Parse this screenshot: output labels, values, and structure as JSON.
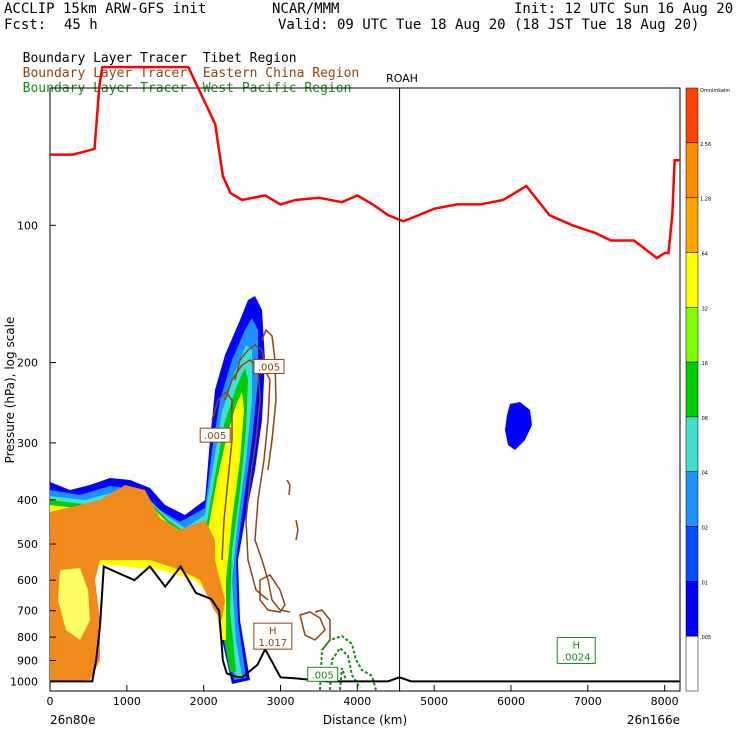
{
  "header": {
    "model": "ACCLIP 15km ARW-GFS init",
    "org": "NCAR/MMM",
    "init": "Init: 12 UTC Sun 16 Aug 20",
    "fcst_label": "Fcst:",
    "fcst_value": "45 h",
    "valid": "Valid: 09 UTC Tue 18 Aug 20 (18 JST Tue 18 Aug 20)"
  },
  "legend": [
    {
      "prefix": "Boundary Layer Tracer",
      "region": "Tibet Region",
      "color": "#000000"
    },
    {
      "prefix": "Boundary Layer Tracer",
      "region": "Eastern China Region",
      "color": "#8b4513"
    },
    {
      "prefix": "Boundary Layer Tracer",
      "region": "West Pacific Region",
      "color": "#1a8a1a"
    }
  ],
  "chart_data": {
    "type": "area",
    "xlabel": "Distance (km)",
    "ylabel": "Pressure (hPa), log scale",
    "x_range": [
      0,
      8200
    ],
    "y_range_hPa": [
      1050,
      50
    ],
    "log_scale_y": true,
    "x_ticks": [
      0,
      1000,
      2000,
      3000,
      4000,
      5000,
      6000,
      7000,
      8000
    ],
    "y_ticks": [
      100,
      200,
      300,
      400,
      500,
      600,
      700,
      800,
      900,
      1000
    ],
    "start_label": "26n80e",
    "end_label": "26n166e",
    "vertical_marker": {
      "label": "ROAH",
      "x_km": 4550
    },
    "colorbar": {
      "labels": [
        "Omnimkeim",
        "2.56",
        "1.28",
        ".64",
        ".32",
        ".16",
        ".08",
        ".04",
        ".02",
        ".01",
        ".005"
      ],
      "colors": [
        "#ff4500",
        "#ff8c00",
        "#ffa500",
        "#ffff00",
        "#7fff00",
        "#00cc00",
        "#40e0d0",
        "#1e90ff",
        "#0050ff",
        "#0000ff",
        "#ffffff"
      ]
    },
    "tropopause": {
      "color": "#ff0000",
      "x": [
        0,
        300,
        580,
        640,
        680,
        1800,
        2150,
        2250,
        2350,
        2500,
        2800,
        3000,
        3200,
        3500,
        3800,
        4000,
        4200,
        4400,
        4600,
        4800,
        5000,
        5300,
        5600,
        5900,
        6200,
        6500,
        6800,
        7100,
        7300,
        7600,
        7900,
        8000,
        8050,
        8100,
        8130,
        8200
      ],
      "p": [
        70,
        70,
        68,
        50,
        45,
        45,
        60,
        78,
        85,
        88,
        86,
        90,
        88,
        87,
        89,
        86,
        90,
        95,
        98,
        95,
        92,
        90,
        90,
        88,
        82,
        95,
        100,
        104,
        108,
        108,
        118,
        115,
        115,
        95,
        72,
        72
      ]
    },
    "terrain": {
      "color": "#000000",
      "x": [
        0,
        400,
        550,
        600,
        650,
        700,
        900,
        1100,
        1300,
        1500,
        1700,
        1900,
        2100,
        2200,
        2250,
        2300,
        2400,
        2500,
        2600,
        2700,
        2800,
        3000,
        3200,
        3600,
        4000,
        4400,
        4550,
        4700,
        4900,
        5500,
        6500,
        7500,
        8200
      ],
      "p": [
        1000,
        1000,
        1000,
        900,
        760,
        560,
        580,
        600,
        560,
        620,
        560,
        640,
        660,
        700,
        900,
        960,
        975,
        980,
        950,
        920,
        850,
        980,
        985,
        1000,
        1000,
        1000,
        980,
        1000,
        1000,
        1000,
        1000,
        1000,
        1000
      ]
    },
    "h_labels": [
      {
        "text": "H",
        "value": "1.017",
        "x_km": 2900,
        "p": 800,
        "color": "#8b4513"
      },
      {
        "text": "H",
        "value": ".0024",
        "x_km": 6850,
        "p": 860,
        "color": "#1a8a1a"
      }
    ],
    "contour_labels": [
      {
        "text": ".005",
        "x_km": 2850,
        "p": 205,
        "color": "#8b4513"
      },
      {
        "text": ".005",
        "x_km": 2150,
        "p": 290,
        "color": "#8b4513"
      },
      {
        "text": ".005",
        "x_km": 3550,
        "p": 970,
        "color": "#1a8a1a"
      }
    ]
  }
}
